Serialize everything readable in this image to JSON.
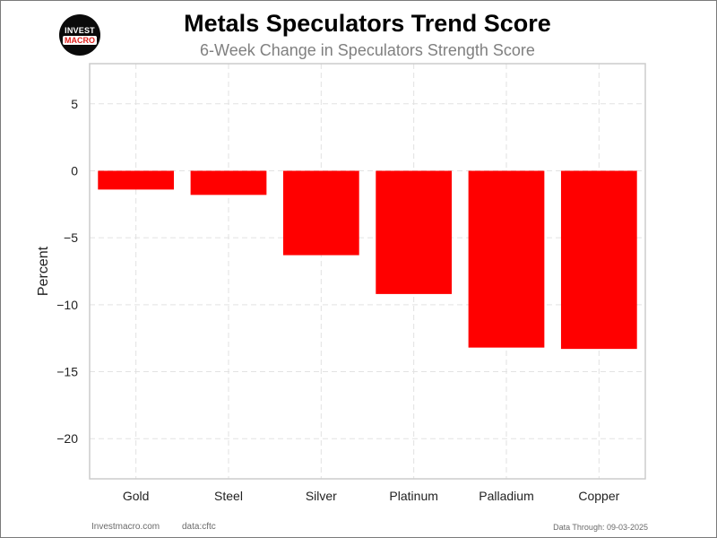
{
  "header": {
    "logo_line1": "INVEST",
    "logo_line2": "MACRO",
    "title": "Metals Speculators Trend Score",
    "subtitle": "6-Week Change in Speculators Strength Score"
  },
  "footer": {
    "site": "Investmacro.com",
    "source": "data:cftc",
    "data_through": "Data Through: 09-03-2025"
  },
  "colors": {
    "bar": "#ff0000",
    "grid": "#e2e2e2",
    "axis_border": "#cccccc"
  },
  "chart_data": {
    "type": "bar",
    "title": "Metals Speculators Trend Score",
    "subtitle": "6-Week Change in Speculators Strength Score",
    "xlabel": "",
    "ylabel": "Percent",
    "categories": [
      "Gold",
      "Steel",
      "Silver",
      "Platinum",
      "Palladium",
      "Copper"
    ],
    "values": [
      -1.4,
      -1.8,
      -6.3,
      -9.2,
      -13.2,
      -13.3
    ],
    "ylim": [
      -23,
      8
    ],
    "yticks": [
      5,
      0,
      -5,
      -10,
      -15,
      -20
    ],
    "ytick_labels": [
      "5",
      "0",
      "−5",
      "−10",
      "−15",
      "−20"
    ],
    "grid": true,
    "legend": "none"
  }
}
